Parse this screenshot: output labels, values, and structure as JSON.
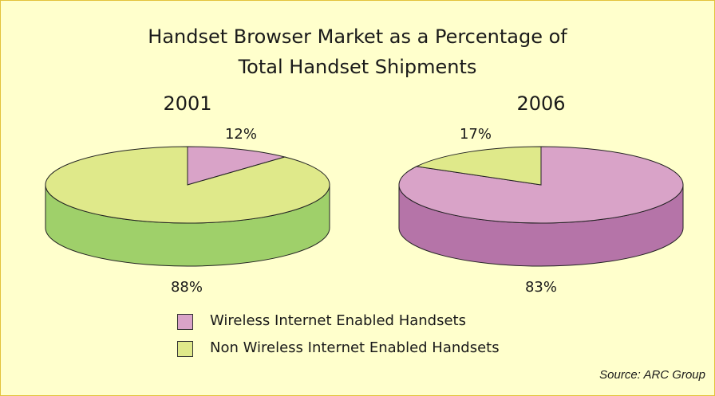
{
  "chart_data": [
    {
      "type": "pie",
      "title": "Handset Browser Market as a Percentage of Total Handset Shipments",
      "subtitle": "2001",
      "slices": [
        {
          "label": "Wireless Internet Enabled Handsets",
          "value": 12,
          "display": "12%",
          "color": "#d9a3c8"
        },
        {
          "label": "Non Wireless Internet Enabled Handsets",
          "value": 88,
          "display": "88%",
          "color": "#dfe98a"
        }
      ]
    },
    {
      "type": "pie",
      "title": "Handset Browser Market as a Percentage of Total Handset Shipments",
      "subtitle": "2006",
      "slices": [
        {
          "label": "Wireless Internet Enabled Handsets",
          "value": 83,
          "display": "83%",
          "color": "#d9a3c8"
        },
        {
          "label": "Non Wireless Internet Enabled Handsets",
          "value": 17,
          "display": "17%",
          "color": "#dfe98a"
        }
      ]
    }
  ],
  "title": {
    "line1": "Handset Browser Market as a Percentage of",
    "line2": "Total Handset Shipments"
  },
  "years": {
    "left": "2001",
    "right": "2006"
  },
  "labels": {
    "pct_2001_wireless": "12%",
    "pct_2001_non": "88%",
    "pct_2006_non": "17%",
    "pct_2006_wireless": "83%"
  },
  "legend": {
    "wireless": {
      "label": "Wireless Internet Enabled Handsets",
      "color": "#d9a3c8"
    },
    "non": {
      "label": "Non Wireless Internet Enabled Handsets",
      "color": "#dfe98a"
    }
  },
  "source": "Source: ARC Group",
  "colors": {
    "background": "#ffffcc",
    "border": "#e2c23c",
    "wireless_top": "#d9a3c8",
    "wireless_side": "#b574a8",
    "non_top": "#dfe98a",
    "non_side": "#9fd06a"
  }
}
